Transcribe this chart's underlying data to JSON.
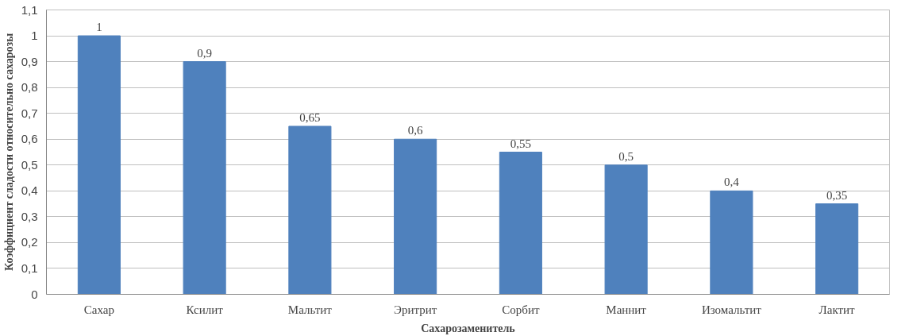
{
  "chart_data": {
    "type": "bar",
    "xlabel": "Сахарозаменитель",
    "ylabel": "Коэффициент сладости относительно сахарозы",
    "categories": [
      "Сахар",
      "Ксилит",
      "Мальтит",
      "Эритрит",
      "Сорбит",
      "Маннит",
      "Изомальтит",
      "Лактит"
    ],
    "values": [
      1,
      0.9,
      0.65,
      0.6,
      0.55,
      0.5,
      0.4,
      0.35
    ],
    "value_labels": [
      "1",
      "0,9",
      "0,65",
      "0,6",
      "0,55",
      "0,5",
      "0,4",
      "0,35"
    ],
    "color": "#4f81bd",
    "ylim": [
      0,
      1.1
    ],
    "yticks": [
      0,
      {
        "value": 0.1,
        "label": "0,1"
      },
      {
        "value": 0.2,
        "label": "0,2"
      },
      {
        "value": 0.3,
        "label": "0,3"
      },
      {
        "value": 0.4,
        "label": "0,4"
      },
      {
        "value": 0.5,
        "label": "0,5"
      },
      {
        "value": 0.6,
        "label": "0,6"
      },
      {
        "value": 0.7,
        "label": "0,7"
      },
      {
        "value": 0.8,
        "label": "0,8"
      },
      {
        "value": 0.9,
        "label": "0,9"
      },
      1,
      {
        "value": 1.1,
        "label": "1,1"
      }
    ],
    "grid": "y"
  }
}
